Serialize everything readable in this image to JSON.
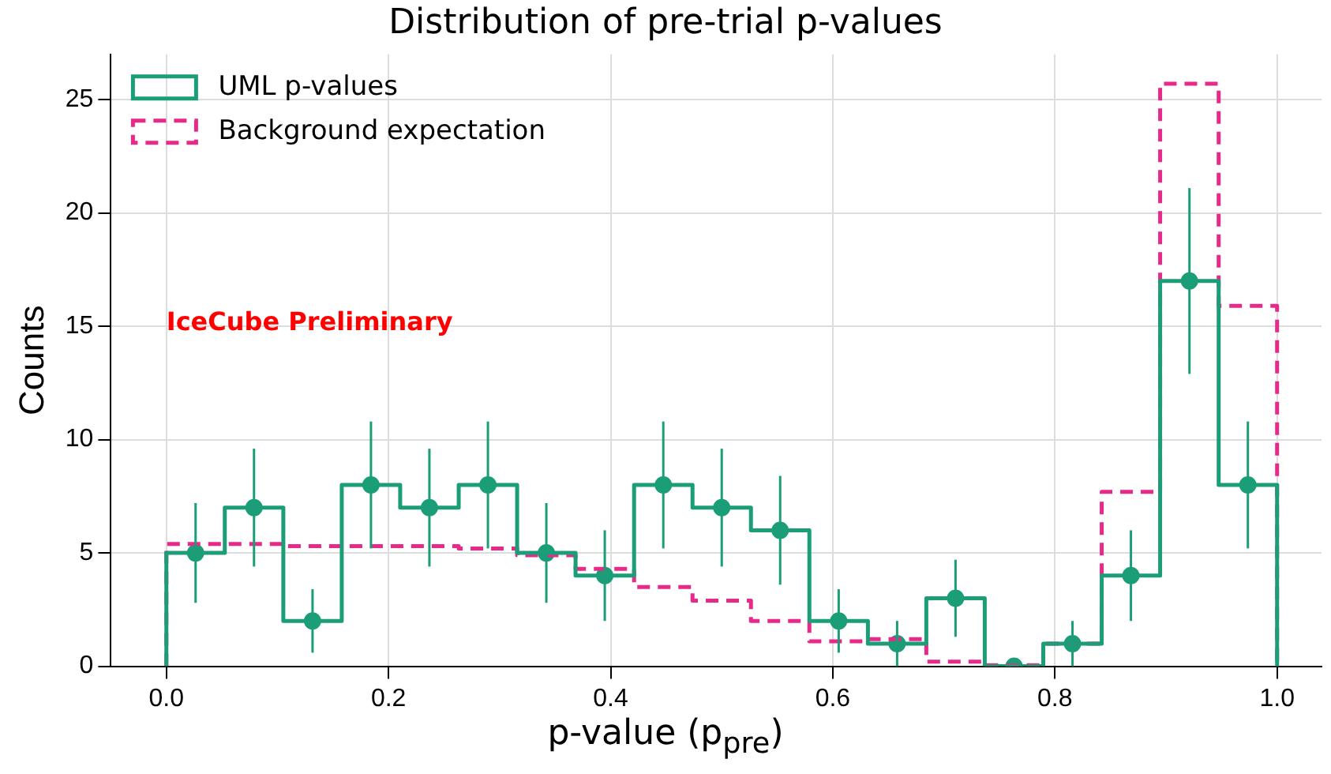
{
  "chart_data": {
    "type": "histogram",
    "title": "Distribution of pre-trial p-values",
    "xlabel": "p-value (p$_{pre}$)",
    "ylabel": "Counts",
    "bins": [
      0,
      0.0526,
      0.1053,
      0.1579,
      0.2105,
      0.2632,
      0.3158,
      0.3684,
      0.4211,
      0.4737,
      0.5263,
      0.5789,
      0.6316,
      0.6842,
      0.7368,
      0.7895,
      0.8421,
      0.8947,
      0.9474,
      1
    ],
    "series": [
      {
        "name": "UML p-values",
        "color": "#1b9e77",
        "values": [
          5,
          7,
          2,
          8,
          7,
          8,
          5,
          4,
          8,
          7,
          6,
          2,
          1,
          3,
          0,
          1,
          4,
          17,
          8
        ]
      },
      {
        "name": "Background expectation",
        "color": "#e7298a",
        "line_style": "dashed",
        "values": [
          5.4,
          5.4,
          5.3,
          5.3,
          5.3,
          5.2,
          4.9,
          4.3,
          3.5,
          2.9,
          2.0,
          1.1,
          1.2,
          0.2,
          0.05,
          1.0,
          7.7,
          25.7,
          15.9
        ]
      },
      {
        "type": "scatter",
        "color": "#1b9e77",
        "marker": "circle",
        "x": [
          0.0263,
          0.0789,
          0.1316,
          0.1842,
          0.2368,
          0.2895,
          0.3421,
          0.3947,
          0.4474,
          0.5,
          0.5526,
          0.6053,
          0.6579,
          0.7105,
          0.7632,
          0.8158,
          0.8684,
          0.9211,
          0.9737
        ],
        "values": [
          5,
          7,
          2,
          8,
          7,
          8,
          5,
          4,
          8,
          7,
          6,
          2,
          1,
          3,
          0,
          1,
          4,
          17,
          8
        ],
        "errors": [
          2.2,
          2.6,
          1.4,
          2.8,
          2.6,
          2.8,
          2.2,
          2.0,
          2.8,
          2.6,
          2.4,
          1.4,
          1.0,
          1.7,
          null,
          1.0,
          2.0,
          4.1,
          2.8
        ]
      }
    ],
    "xlim": [
      -0.05,
      1.04
    ],
    "xticks": [
      {
        "value": 0,
        "label": "0.0"
      },
      0.2,
      0.4,
      0.6,
      0.8,
      {
        "value": 1,
        "label": "1.0"
      }
    ],
    "ylim": [
      0,
      27
    ],
    "yticks": [
      0,
      5,
      10,
      15,
      20,
      25
    ],
    "grid": true,
    "legend": "top left",
    "annotations": [
      "IceCube Preliminary"
    ]
  }
}
